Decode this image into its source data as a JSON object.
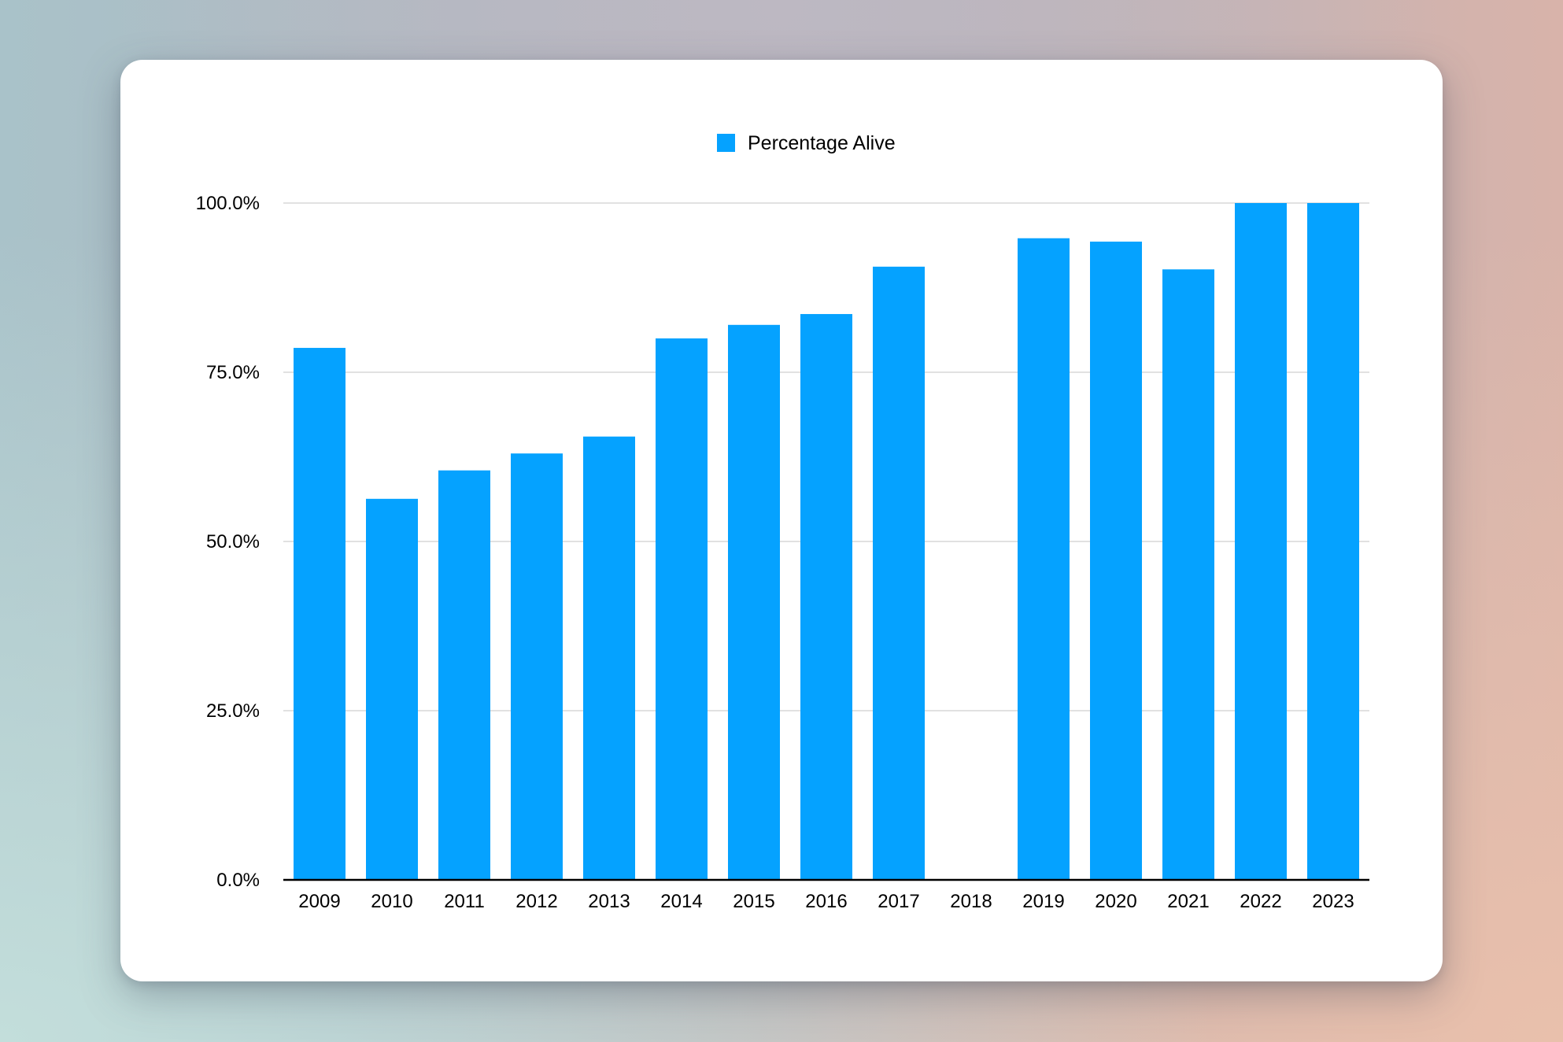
{
  "chart_data": {
    "type": "bar",
    "title": "",
    "xlabel": "",
    "ylabel": "",
    "categories": [
      "2009",
      "2010",
      "2011",
      "2012",
      "2013",
      "2014",
      "2015",
      "2016",
      "2017",
      "2018",
      "2019",
      "2020",
      "2021",
      "2022",
      "2023"
    ],
    "series": [
      {
        "name": "Percentage Alive",
        "color": "#05a2ff",
        "values": [
          78.6,
          56.3,
          60.5,
          63.0,
          65.5,
          80.0,
          82.0,
          83.6,
          90.6,
          null,
          94.8,
          94.3,
          90.2,
          100.0,
          100.0
        ]
      }
    ],
    "ylim": [
      0,
      100
    ],
    "yticks": [
      {
        "value": 0,
        "label": "0.0%"
      },
      {
        "value": 25,
        "label": "25.0%"
      },
      {
        "value": 50,
        "label": "50.0%"
      },
      {
        "value": 75,
        "label": "75.0%"
      },
      {
        "value": 100,
        "label": "100.0%"
      }
    ],
    "grid": true,
    "legend_position": "top-center"
  }
}
